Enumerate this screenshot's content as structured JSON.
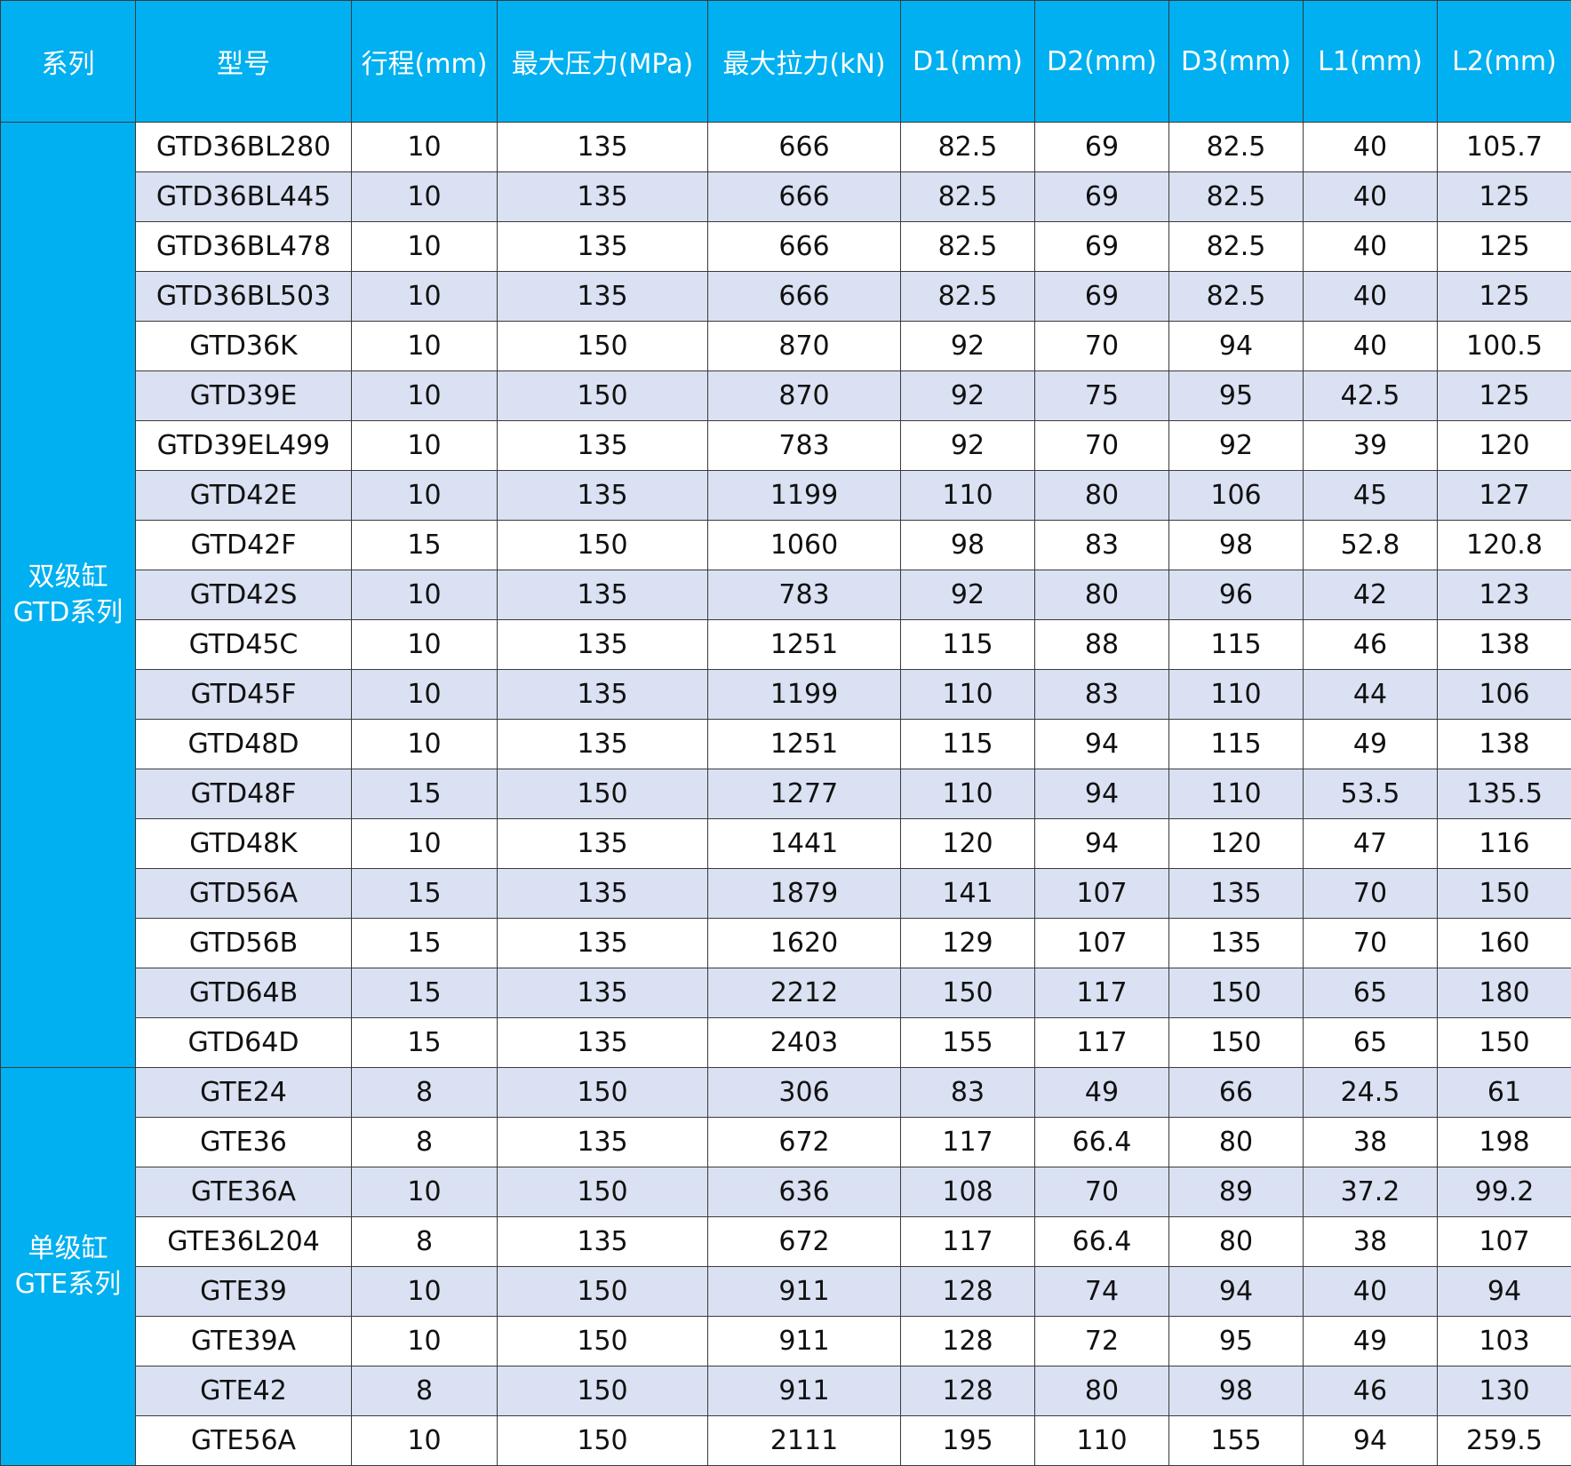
{
  "table": {
    "header": [
      "系列",
      "型号",
      "行程(mm)",
      "最大压力(MPa)",
      "最大拉力(kN)",
      "D1(mm)",
      "D2(mm)",
      "D3(mm)",
      "L1(mm)",
      "L2(mm)"
    ],
    "groups": [
      {
        "label": [
          "双级缸",
          "GTD系列"
        ],
        "rows": [
          [
            "GTD36BL280",
            10,
            135,
            666,
            82.5,
            69,
            82.5,
            40,
            105.7
          ],
          [
            "GTD36BL445",
            10,
            135,
            666,
            82.5,
            69,
            82.5,
            40,
            125
          ],
          [
            "GTD36BL478",
            10,
            135,
            666,
            82.5,
            69,
            82.5,
            40,
            125
          ],
          [
            "GTD36BL503",
            10,
            135,
            666,
            82.5,
            69,
            82.5,
            40,
            125
          ],
          [
            "GTD36K",
            10,
            150,
            870,
            92,
            70,
            94,
            40,
            100.5
          ],
          [
            "GTD39E",
            10,
            150,
            870,
            92,
            75,
            95,
            42.5,
            125
          ],
          [
            "GTD39EL499",
            10,
            135,
            783,
            92,
            70,
            92,
            39,
            120
          ],
          [
            "GTD42E",
            10,
            135,
            1199,
            110,
            80,
            106,
            45,
            127
          ],
          [
            "GTD42F",
            15,
            150,
            1060,
            98,
            83,
            98,
            52.8,
            120.8
          ],
          [
            "GTD42S",
            10,
            135,
            783,
            92,
            80,
            96,
            42,
            123
          ],
          [
            "GTD45C",
            10,
            135,
            1251,
            115,
            88,
            115,
            46,
            138
          ],
          [
            "GTD45F",
            10,
            135,
            1199,
            110,
            83,
            110,
            44,
            106
          ],
          [
            "GTD48D",
            10,
            135,
            1251,
            115,
            94,
            115,
            49,
            138
          ],
          [
            "GTD48F",
            15,
            150,
            1277,
            110,
            94,
            110,
            53.5,
            135.5
          ],
          [
            "GTD48K",
            10,
            135,
            1441,
            120,
            94,
            120,
            47,
            116
          ],
          [
            "GTD56A",
            15,
            135,
            1879,
            141,
            107,
            135,
            70,
            150
          ],
          [
            "GTD56B",
            15,
            135,
            1620,
            129,
            107,
            135,
            70,
            160
          ],
          [
            "GTD64B",
            15,
            135,
            2212,
            150,
            117,
            150,
            65,
            180
          ],
          [
            "GTD64D",
            15,
            135,
            2403,
            155,
            117,
            150,
            65,
            150
          ]
        ]
      },
      {
        "label": [
          "单级缸",
          "GTE系列"
        ],
        "rows": [
          [
            "GTE24",
            8,
            150,
            306,
            83,
            49,
            66,
            24.5,
            61
          ],
          [
            "GTE36",
            8,
            135,
            672,
            117,
            66.4,
            80,
            38,
            198
          ],
          [
            "GTE36A",
            10,
            150,
            636,
            108,
            70,
            89,
            37.2,
            99.2
          ],
          [
            "GTE36L204",
            8,
            135,
            672,
            117,
            66.4,
            80,
            38,
            107
          ],
          [
            "GTE39",
            10,
            150,
            911,
            128,
            74,
            94,
            40,
            94
          ],
          [
            "GTE39A",
            10,
            150,
            911,
            128,
            72,
            95,
            49,
            103
          ],
          [
            "GTE42",
            8,
            150,
            911,
            128,
            80,
            98,
            46,
            130
          ],
          [
            "GTE56A",
            10,
            150,
            2111,
            195,
            110,
            155,
            94,
            259.5
          ]
        ]
      }
    ]
  }
}
